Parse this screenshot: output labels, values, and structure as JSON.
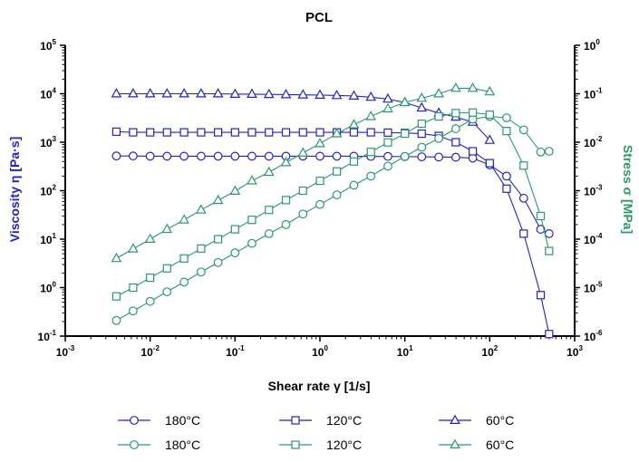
{
  "chart_data": {
    "type": "scatter",
    "title": "PCL",
    "xlabel": "Shear rate γ [1/s]",
    "ylabel_left": "Viscosity η [Pa·s]",
    "ylabel_right": "Stress σ [MPa]",
    "xscale": "log",
    "xlim": [
      0.001,
      1000
    ],
    "ylim_left": [
      0.1,
      100000
    ],
    "ylim_right": [
      1e-06,
      1
    ],
    "x_ticks": [
      {
        "base": "10",
        "exp": "-3"
      },
      {
        "base": "10",
        "exp": "-2"
      },
      {
        "base": "10",
        "exp": "-1"
      },
      {
        "base": "10",
        "exp": "0"
      },
      {
        "base": "10",
        "exp": "1"
      },
      {
        "base": "10",
        "exp": "2"
      },
      {
        "base": "10",
        "exp": "3"
      }
    ],
    "y_left_ticks": [
      {
        "base": "10",
        "exp": "-1"
      },
      {
        "base": "10",
        "exp": "0"
      },
      {
        "base": "10",
        "exp": "1"
      },
      {
        "base": "10",
        "exp": "2"
      },
      {
        "base": "10",
        "exp": "3"
      },
      {
        "base": "10",
        "exp": "4"
      },
      {
        "base": "10",
        "exp": "5"
      }
    ],
    "y_right_ticks": [
      {
        "base": "10",
        "exp": "-6"
      },
      {
        "base": "10",
        "exp": "-5"
      },
      {
        "base": "10",
        "exp": "-4"
      },
      {
        "base": "10",
        "exp": "-3"
      },
      {
        "base": "10",
        "exp": "-2"
      },
      {
        "base": "10",
        "exp": "-1"
      },
      {
        "base": "10",
        "exp": "0"
      }
    ],
    "colors": {
      "viscosity": "#2222cc",
      "stress": "#2a9a6a"
    },
    "legend_placement": "bottom",
    "series": [
      {
        "name": "180°C",
        "axis": "left",
        "quantity": "viscosity",
        "marker": "circle",
        "color": "#2222cc",
        "x": [
          0.004,
          0.0063,
          0.01,
          0.0158,
          0.0251,
          0.0398,
          0.0631,
          0.1,
          0.158,
          0.251,
          0.398,
          0.631,
          1,
          1.58,
          2.51,
          3.98,
          6.31,
          10,
          15.8,
          25.1,
          39.8,
          63.1,
          100,
          158,
          251,
          398,
          500
        ],
        "y": [
          520,
          520,
          515,
          515,
          515,
          515,
          515,
          515,
          515,
          515,
          515,
          515,
          515,
          515,
          515,
          510,
          510,
          505,
          500,
          495,
          490,
          470,
          340,
          200,
          70,
          16,
          13
        ]
      },
      {
        "name": "120°C",
        "axis": "left",
        "quantity": "viscosity",
        "marker": "square",
        "color": "#2222cc",
        "x": [
          0.004,
          0.0063,
          0.01,
          0.0158,
          0.0251,
          0.0398,
          0.0631,
          0.1,
          0.158,
          0.251,
          0.398,
          0.631,
          1,
          1.58,
          2.51,
          3.98,
          6.31,
          10,
          15.8,
          25.1,
          39.8,
          63.1,
          100,
          158,
          251,
          398,
          500
        ],
        "y": [
          1650,
          1600,
          1600,
          1600,
          1600,
          1600,
          1600,
          1600,
          1600,
          1600,
          1600,
          1600,
          1600,
          1600,
          1600,
          1600,
          1580,
          1550,
          1500,
          1350,
          1000,
          650,
          370,
          110,
          13,
          0.7,
          0.11
        ]
      },
      {
        "name": "60°C",
        "axis": "left",
        "quantity": "viscosity",
        "marker": "triangle",
        "color": "#2222cc",
        "x": [
          0.004,
          0.0063,
          0.01,
          0.0158,
          0.0251,
          0.0398,
          0.0631,
          0.1,
          0.158,
          0.251,
          0.398,
          0.631,
          1,
          1.58,
          2.51,
          3.98,
          6.31,
          10,
          15.8,
          25.1,
          39.8,
          63.1,
          100
        ],
        "y": [
          10000,
          10000,
          10000,
          10000,
          10000,
          10000,
          10000,
          9800,
          9800,
          9700,
          9600,
          9500,
          9400,
          9200,
          9000,
          8500,
          7800,
          6600,
          5100,
          4000,
          3300,
          2600,
          1100
        ]
      },
      {
        "name": "180°C",
        "axis": "right",
        "quantity": "stress",
        "marker": "circle",
        "color": "#2a9a6a",
        "x": [
          0.004,
          0.0063,
          0.01,
          0.0158,
          0.0251,
          0.0398,
          0.0631,
          0.1,
          0.158,
          0.251,
          0.398,
          0.631,
          1,
          1.58,
          2.51,
          3.98,
          6.31,
          10,
          15.8,
          25.1,
          39.8,
          63.1,
          100,
          158,
          251,
          398,
          500
        ],
        "y": [
          2.1e-06,
          3.3e-06,
          5.2e-06,
          8.2e-06,
          1.3e-05,
          2.1e-05,
          3.3e-05,
          5.2e-05,
          8.2e-05,
          0.00013,
          0.0002,
          0.00033,
          0.00052,
          0.00082,
          0.0013,
          0.002,
          0.0032,
          0.0051,
          0.0079,
          0.012,
          0.019,
          0.03,
          0.034,
          0.032,
          0.018,
          0.0063,
          0.0065
        ]
      },
      {
        "name": "120°C",
        "axis": "right",
        "quantity": "stress",
        "marker": "square",
        "color": "#2a9a6a",
        "x": [
          0.004,
          0.0063,
          0.01,
          0.0158,
          0.0251,
          0.0398,
          0.0631,
          0.1,
          0.158,
          0.251,
          0.398,
          0.631,
          1,
          1.58,
          2.51,
          3.98,
          6.31,
          10,
          15.8,
          25.1,
          39.8,
          63.1,
          100,
          158,
          251,
          398,
          500
        ],
        "y": [
          6.6e-06,
          1e-05,
          1.6e-05,
          2.5e-05,
          4e-05,
          6.4e-05,
          0.0001,
          0.00016,
          0.00025,
          0.0004,
          0.00064,
          0.001,
          0.0016,
          0.0025,
          0.004,
          0.0063,
          0.0099,
          0.015,
          0.024,
          0.034,
          0.04,
          0.041,
          0.037,
          0.017,
          0.0033,
          0.0003,
          5.7e-05
        ]
      },
      {
        "name": "60°C",
        "axis": "right",
        "quantity": "stress",
        "marker": "triangle",
        "color": "#2a9a6a",
        "x": [
          0.004,
          0.0063,
          0.01,
          0.0158,
          0.0251,
          0.0398,
          0.0631,
          0.1,
          0.158,
          0.251,
          0.398,
          0.631,
          1,
          1.58,
          2.51,
          3.98,
          6.31,
          10,
          15.8,
          25.1,
          39.8,
          63.1,
          100
        ],
        "y": [
          4e-05,
          6.3e-05,
          0.0001,
          0.00016,
          0.00025,
          0.0004,
          0.00063,
          0.00098,
          0.0016,
          0.0024,
          0.0038,
          0.006,
          0.0094,
          0.015,
          0.023,
          0.034,
          0.049,
          0.066,
          0.081,
          0.1,
          0.13,
          0.13,
          0.11
        ]
      }
    ]
  }
}
